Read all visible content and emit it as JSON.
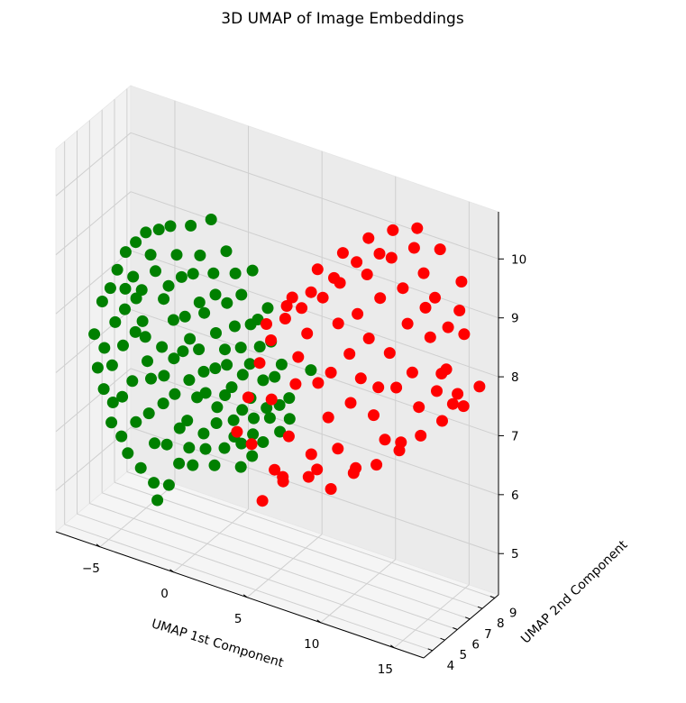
{
  "chart_data": {
    "type": "scatter",
    "projection": "3d",
    "title": "3D UMAP of Image Embeddings",
    "xlabel": "UMAP 1st Component",
    "ylabel": "UMAP 2nd Component",
    "zlabel": "",
    "xlim": [
      -8,
      17
    ],
    "ylim": [
      3.3,
      9.3
    ],
    "zlim": [
      4.3,
      10.8
    ],
    "xticks": [
      -5,
      0,
      5,
      10,
      15
    ],
    "yticks": [
      4,
      5,
      6,
      7,
      8,
      9
    ],
    "zticks": [
      5,
      6,
      7,
      8,
      9,
      10
    ],
    "grid": true,
    "legend": "none",
    "series": [
      {
        "color": "#008000",
        "points": [
          [
            -7.0,
            5.2,
            7.4
          ],
          [
            -6.8,
            5.6,
            7.9
          ],
          [
            -6.6,
            5.0,
            6.9
          ],
          [
            -6.5,
            5.9,
            8.1
          ],
          [
            -6.4,
            5.3,
            7.2
          ],
          [
            -6.2,
            6.1,
            8.4
          ],
          [
            -6.1,
            4.9,
            6.6
          ],
          [
            -6.0,
            5.7,
            7.6
          ],
          [
            -5.9,
            5.4,
            6.3
          ],
          [
            -5.8,
            6.3,
            8.7
          ],
          [
            -5.7,
            5.1,
            7.0
          ],
          [
            -5.6,
            6.0,
            7.8
          ],
          [
            -5.5,
            4.8,
            6.1
          ],
          [
            -5.4,
            5.8,
            8.2
          ],
          [
            -5.3,
            5.5,
            7.3
          ],
          [
            -5.2,
            6.4,
            8.9
          ],
          [
            -5.1,
            5.2,
            6.5
          ],
          [
            -5.0,
            6.2,
            8.0
          ],
          [
            -4.9,
            4.9,
            5.9
          ],
          [
            -4.8,
            5.9,
            7.5
          ],
          [
            -4.7,
            5.6,
            8.5
          ],
          [
            -4.6,
            6.5,
            9.1
          ],
          [
            -4.5,
            5.3,
            6.8
          ],
          [
            -4.4,
            6.0,
            7.7
          ],
          [
            -4.3,
            4.7,
            5.7
          ],
          [
            -4.2,
            5.7,
            8.3
          ],
          [
            -4.1,
            6.3,
            8.8
          ],
          [
            -4.0,
            5.0,
            6.2
          ],
          [
            -3.9,
            5.8,
            7.1
          ],
          [
            -3.8,
            6.6,
            9.2
          ],
          [
            -3.7,
            5.4,
            7.6
          ],
          [
            -3.6,
            6.1,
            8.6
          ],
          [
            -3.5,
            4.8,
            5.5
          ],
          [
            -3.4,
            5.5,
            6.9
          ],
          [
            -3.3,
            6.4,
            8.1
          ],
          [
            -3.2,
            5.1,
            6.4
          ],
          [
            -3.1,
            6.7,
            9.3
          ],
          [
            -3.0,
            5.9,
            7.4
          ],
          [
            -2.9,
            5.2,
            5.9
          ],
          [
            -2.8,
            6.2,
            8.4
          ],
          [
            -2.7,
            4.9,
            5.3
          ],
          [
            -2.6,
            5.6,
            7.0
          ],
          [
            -2.5,
            6.5,
            8.9
          ],
          [
            -2.4,
            5.3,
            6.6
          ],
          [
            -2.3,
            6.0,
            7.9
          ],
          [
            -2.2,
            4.6,
            5.1
          ],
          [
            -2.1,
            5.8,
            7.3
          ],
          [
            -2.0,
            6.3,
            8.6
          ],
          [
            -1.9,
            5.0,
            6.0
          ],
          [
            -1.8,
            6.8,
            9.4
          ],
          [
            -1.7,
            5.4,
            6.8
          ],
          [
            -1.6,
            6.1,
            8.0
          ],
          [
            -1.5,
            4.7,
            5.4
          ],
          [
            -1.4,
            5.7,
            7.5
          ],
          [
            -1.3,
            6.4,
            8.7
          ],
          [
            -1.2,
            5.2,
            6.3
          ],
          [
            -1.1,
            5.9,
            7.7
          ],
          [
            -1.0,
            6.6,
            9.0
          ],
          [
            -0.9,
            4.8,
            5.8
          ],
          [
            -0.8,
            5.5,
            7.1
          ],
          [
            -0.7,
            6.2,
            8.3
          ],
          [
            -0.6,
            5.1,
            6.5
          ],
          [
            -0.5,
            6.9,
            9.6
          ],
          [
            -0.4,
            5.8,
            7.6
          ],
          [
            -0.3,
            4.9,
            6.1
          ],
          [
            -0.2,
            6.0,
            8.2
          ],
          [
            -0.1,
            5.3,
            6.9
          ],
          [
            0.0,
            6.5,
            8.8
          ],
          [
            0.1,
            5.6,
            7.3
          ],
          [
            0.2,
            4.6,
            5.9
          ],
          [
            0.3,
            6.3,
            8.5
          ],
          [
            0.4,
            5.4,
            7.0
          ],
          [
            0.5,
            6.1,
            7.9
          ],
          [
            0.6,
            5.0,
            6.4
          ],
          [
            0.7,
            6.7,
            9.2
          ],
          [
            0.8,
            5.7,
            7.4
          ],
          [
            0.9,
            4.8,
            6.2
          ],
          [
            1.0,
            6.4,
            8.4
          ],
          [
            1.1,
            5.5,
            6.8
          ],
          [
            1.2,
            6.0,
            7.7
          ],
          [
            1.3,
            5.2,
            6.6
          ],
          [
            1.4,
            6.6,
            8.9
          ],
          [
            1.5,
            5.8,
            7.5
          ],
          [
            1.6,
            4.7,
            6.0
          ],
          [
            1.7,
            6.2,
            8.1
          ],
          [
            1.8,
            5.3,
            7.1
          ],
          [
            1.9,
            6.5,
            8.6
          ],
          [
            2.0,
            5.6,
            7.2
          ],
          [
            2.1,
            4.9,
            6.3
          ],
          [
            2.2,
            6.1,
            7.8
          ],
          [
            2.3,
            5.4,
            6.7
          ],
          [
            2.4,
            6.8,
            9.0
          ],
          [
            2.5,
            5.9,
            7.4
          ],
          [
            2.6,
            5.1,
            6.5
          ],
          [
            2.7,
            6.3,
            8.2
          ],
          [
            2.8,
            5.5,
            6.9
          ],
          [
            2.9,
            6.0,
            7.6
          ],
          [
            3.0,
            5.2,
            6.4
          ],
          [
            3.1,
            6.4,
            8.3
          ],
          [
            3.2,
            5.7,
            7.1
          ],
          [
            3.3,
            4.8,
            6.1
          ],
          [
            3.4,
            6.2,
            7.9
          ],
          [
            3.5,
            5.6,
            6.8
          ],
          [
            3.6,
            6.6,
            8.5
          ],
          [
            3.7,
            5.3,
            6.6
          ],
          [
            3.8,
            6.0,
            7.4
          ],
          [
            3.9,
            5.0,
            6.3
          ],
          [
            4.0,
            6.4,
            8.0
          ],
          [
            4.2,
            5.8,
            7.0
          ],
          [
            4.3,
            5.4,
            6.5
          ],
          [
            4.5,
            6.1,
            7.5
          ],
          [
            4.6,
            5.6,
            6.9
          ],
          [
            4.8,
            6.3,
            7.7
          ],
          [
            5.0,
            5.9,
            7.1
          ],
          [
            5.2,
            5.7,
            6.7
          ],
          [
            5.4,
            6.2,
            7.2
          ],
          [
            5.6,
            6.0,
            6.9
          ],
          [
            6.2,
            7.0,
            7.6
          ]
        ]
      },
      {
        "color": "#ff0000",
        "points": [
          [
            3.8,
            3.9,
            6.9
          ],
          [
            4.4,
            4.1,
            7.5
          ],
          [
            5.0,
            4.3,
            8.1
          ],
          [
            4.2,
            4.6,
            6.6
          ],
          [
            5.6,
            4.5,
            8.5
          ],
          [
            6.1,
            4.2,
            6.4
          ],
          [
            5.3,
            4.9,
            7.4
          ],
          [
            6.4,
            4.7,
            8.9
          ],
          [
            6.9,
            4.4,
            7.0
          ],
          [
            5.9,
            5.1,
            6.1
          ],
          [
            7.2,
            4.8,
            8.3
          ],
          [
            6.6,
            5.3,
            7.7
          ],
          [
            7.6,
            4.6,
            9.2
          ],
          [
            8.0,
            4.9,
            6.7
          ],
          [
            7.3,
            5.4,
            8.6
          ],
          [
            8.3,
            5.1,
            7.9
          ],
          [
            7.8,
            5.6,
            6.3
          ],
          [
            8.7,
            5.0,
            9.4
          ],
          [
            9.0,
            5.3,
            8.1
          ],
          [
            8.4,
            5.8,
            7.2
          ],
          [
            9.3,
            5.5,
            6.8
          ],
          [
            8.9,
            6.0,
            8.8
          ],
          [
            9.7,
            5.2,
            9.7
          ],
          [
            10.0,
            5.7,
            7.6
          ],
          [
            9.5,
            6.2,
            8.3
          ],
          [
            10.3,
            5.9,
            9.1
          ],
          [
            10.6,
            5.4,
            6.6
          ],
          [
            10.1,
            6.4,
            7.9
          ],
          [
            10.9,
            6.1,
            8.7
          ],
          [
            11.2,
            5.6,
            9.9
          ],
          [
            10.8,
            6.6,
            7.3
          ],
          [
            11.5,
            6.3,
            9.4
          ],
          [
            11.8,
            5.8,
            8.0
          ],
          [
            11.4,
            6.8,
            6.9
          ],
          [
            12.1,
            6.5,
            10.1
          ],
          [
            12.4,
            6.0,
            8.6
          ],
          [
            12.0,
            7.0,
            7.8
          ],
          [
            12.7,
            6.7,
            9.6
          ],
          [
            13.0,
            6.2,
            7.1
          ],
          [
            12.6,
            7.2,
            8.9
          ],
          [
            13.3,
            6.9,
            10.3
          ],
          [
            13.6,
            6.4,
            8.3
          ],
          [
            13.2,
            7.4,
            7.5
          ],
          [
            13.9,
            7.1,
            9.3
          ],
          [
            14.2,
            6.6,
            10.0
          ],
          [
            13.8,
            7.6,
            8.7
          ],
          [
            14.5,
            7.3,
            7.9
          ],
          [
            14.8,
            6.8,
            9.6
          ],
          [
            14.4,
            7.8,
            8.1
          ],
          [
            15.1,
            7.5,
            9.0
          ],
          [
            15.4,
            7.0,
            8.4
          ],
          [
            15.0,
            8.0,
            7.6
          ],
          [
            15.7,
            7.7,
            9.3
          ],
          [
            16.0,
            7.2,
            8.0
          ],
          [
            15.6,
            8.2,
            8.8
          ],
          [
            4.6,
            5.0,
            5.6
          ],
          [
            5.5,
            5.6,
            5.9
          ],
          [
            6.8,
            6.1,
            6.0
          ],
          [
            7.9,
            6.6,
            5.8
          ],
          [
            9.1,
            7.0,
            6.1
          ],
          [
            10.4,
            7.3,
            6.3
          ],
          [
            11.7,
            7.6,
            6.6
          ],
          [
            12.9,
            7.9,
            6.9
          ],
          [
            14.1,
            8.2,
            7.2
          ],
          [
            15.3,
            8.5,
            7.5
          ],
          [
            16.3,
            8.6,
            7.9
          ],
          [
            6.2,
            5.5,
            9.1
          ],
          [
            7.5,
            6.0,
            9.6
          ],
          [
            8.8,
            6.5,
            9.9
          ],
          [
            10.2,
            6.9,
            10.2
          ],
          [
            11.6,
            7.2,
            10.4
          ],
          [
            13.0,
            7.5,
            10.5
          ],
          [
            14.3,
            7.8,
            10.2
          ],
          [
            15.5,
            8.1,
            9.7
          ],
          [
            9.8,
            4.6,
            9.9
          ],
          [
            11.0,
            5.0,
            10.2
          ],
          [
            8.5,
            4.3,
            9.6
          ],
          [
            7.1,
            4.0,
            9.3
          ],
          [
            12.3,
            5.3,
            10.4
          ],
          [
            5.8,
            3.9,
            8.9
          ]
        ]
      }
    ]
  }
}
